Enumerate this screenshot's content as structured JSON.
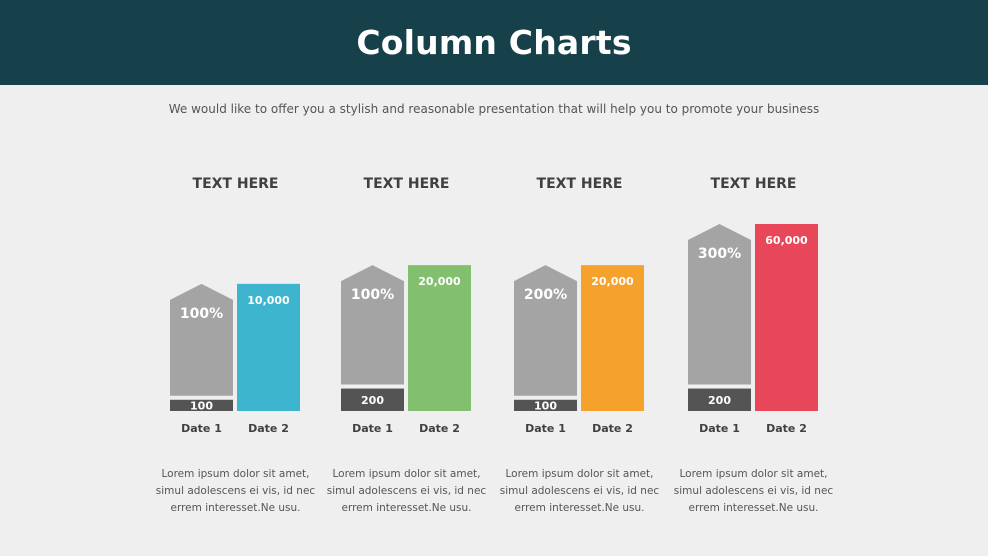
{
  "header": {
    "title": "Column Charts"
  },
  "subtitle": "We would like to offer you a stylish and reasonable presentation that will help you to promote your business",
  "colors": {
    "header_bg": "#17414a",
    "gray_block": "#a4a4a4",
    "dark_block": "#545454"
  },
  "chart_data": [
    {
      "type": "bar",
      "title": "TEXT HERE",
      "categories": [
        "Date 1",
        "Date 2"
      ],
      "date1_base_label": "100",
      "date1_top_label": "100%",
      "date2_label": "10,000",
      "date2_color": "#3db5cf",
      "relative_height": 0.68,
      "base_fraction": 0.06,
      "description": [
        "Lorem ipsum dolor sit amet,",
        "simul adolescens ei vis, id nec",
        "errem interesset.Ne usu."
      ]
    },
    {
      "type": "bar",
      "title": "TEXT HERE",
      "categories": [
        "Date 1",
        "Date 2"
      ],
      "date1_base_label": "200",
      "date1_top_label": "100%",
      "date2_label": "20,000",
      "date2_color": "#82c06f",
      "relative_height": 0.78,
      "base_fraction": 0.12,
      "description": [
        "Lorem ipsum dolor sit amet,",
        "simul adolescens ei vis, id nec",
        "errem interesset.Ne usu."
      ]
    },
    {
      "type": "bar",
      "title": "TEXT HERE",
      "categories": [
        "Date 1",
        "Date 2"
      ],
      "date1_base_label": "100",
      "date1_top_label": "200%",
      "date2_label": "20,000",
      "date2_color": "#f4a22c",
      "relative_height": 0.78,
      "base_fraction": 0.06,
      "description": [
        "Lorem ipsum dolor sit amet,",
        "simul adolescens ei vis, id nec",
        "errem interesset.Ne usu."
      ]
    },
    {
      "type": "bar",
      "title": "TEXT HERE",
      "categories": [
        "Date 1",
        "Date 2"
      ],
      "date1_base_label": "200",
      "date1_top_label": "300%",
      "date2_label": "60,000",
      "date2_color": "#e8475a",
      "relative_height": 1.0,
      "base_fraction": 0.12,
      "description": [
        "Lorem ipsum dolor sit amet,",
        "simul adolescens ei vis, id nec",
        "errem interesset.Ne usu."
      ]
    }
  ]
}
